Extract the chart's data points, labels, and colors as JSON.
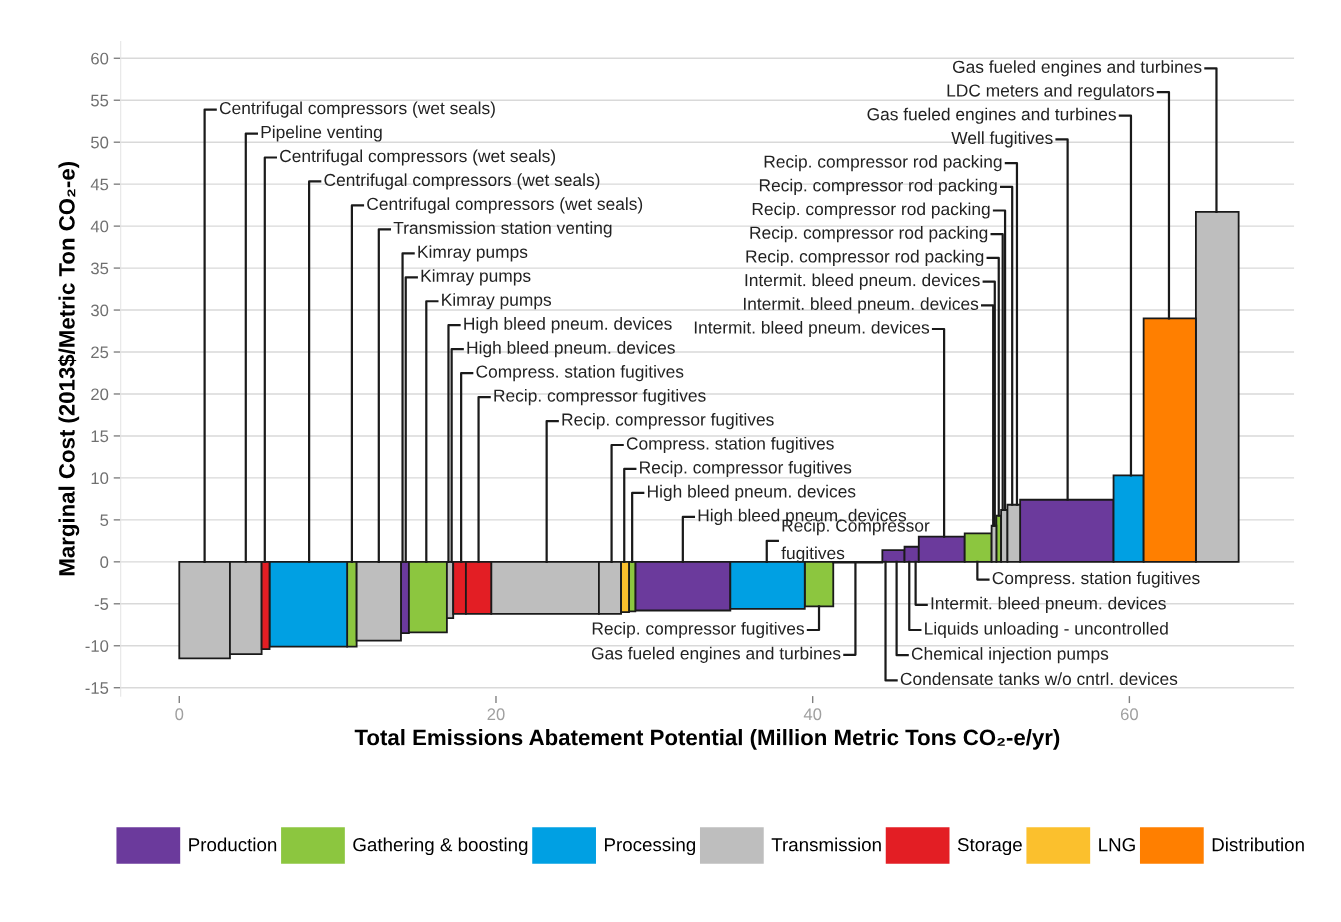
{
  "chart_data": {
    "type": "histogram",
    "xlabel": "Total Emissions Abatement Potential (Million Metric Tons CO₂-e/yr)",
    "ylabel": "Marginal Cost (2013$/Metric Ton CO₂-e)",
    "bins": [
      0,
      3.2,
      5.2,
      5.7,
      10.6,
      11.2,
      14.0,
      14.5,
      16.9,
      17.3,
      18.1,
      19.7,
      26.5,
      27.9,
      28.4,
      28.8,
      34.8,
      39.5,
      41.3,
      44.4,
      45.8,
      46.7,
      49.6,
      51.3,
      51.6,
      51.9,
      52.3,
      53.1,
      59.0,
      60.9,
      64.2,
      66.9
    ],
    "series": [
      {
        "name": "Production",
        "color": "#6b3a9c",
        "values": [
          null,
          null,
          null,
          null,
          null,
          null,
          -8.5,
          null,
          null,
          null,
          null,
          null,
          null,
          null,
          null,
          -5.8,
          null,
          null,
          null,
          1.4,
          1.8,
          3.0,
          null,
          null,
          null,
          null,
          null,
          7.4,
          null,
          null,
          null
        ]
      },
      {
        "name": "Gathering & boosting",
        "color": "#8cc63f",
        "values": [
          null,
          null,
          null,
          null,
          -10.1,
          null,
          null,
          -8.4,
          null,
          null,
          null,
          null,
          null,
          null,
          -5.9,
          null,
          null,
          -5.3,
          null,
          null,
          null,
          null,
          3.4,
          null,
          5.5,
          null,
          null,
          null,
          null,
          null,
          null
        ]
      },
      {
        "name": "Processing",
        "color": "#00a0e3",
        "values": [
          null,
          null,
          null,
          -10.1,
          null,
          null,
          null,
          null,
          null,
          null,
          null,
          null,
          null,
          null,
          null,
          null,
          -5.6,
          null,
          null,
          null,
          null,
          null,
          null,
          null,
          null,
          null,
          null,
          null,
          10.3,
          null,
          null
        ]
      },
      {
        "name": "Transmission",
        "color": "#bebebe",
        "values": [
          -11.5,
          -11.0,
          null,
          null,
          null,
          -9.4,
          null,
          null,
          -6.7,
          null,
          null,
          -6.2,
          -6.2,
          null,
          null,
          null,
          null,
          null,
          -0.1,
          null,
          null,
          null,
          null,
          4.3,
          null,
          6.2,
          6.8,
          null,
          null,
          null,
          41.7
        ]
      },
      {
        "name": "Storage",
        "color": "#e31e24",
        "values": [
          null,
          null,
          -10.4,
          null,
          null,
          null,
          null,
          null,
          null,
          -6.2,
          -6.2,
          null,
          null,
          null,
          null,
          null,
          null,
          null,
          null,
          null,
          null,
          null,
          null,
          null,
          null,
          null,
          null,
          null,
          null,
          null,
          null
        ]
      },
      {
        "name": "LNG",
        "color": "#fbc02d",
        "values": [
          null,
          null,
          null,
          null,
          null,
          null,
          null,
          null,
          null,
          null,
          null,
          null,
          null,
          -6.0,
          null,
          null,
          null,
          null,
          null,
          null,
          null,
          null,
          null,
          null,
          null,
          null,
          null,
          null,
          null,
          null,
          null
        ]
      },
      {
        "name": "Distribution",
        "color": "#ff7f00",
        "values": [
          null,
          null,
          null,
          null,
          null,
          null,
          null,
          null,
          null,
          null,
          null,
          null,
          null,
          null,
          null,
          null,
          null,
          null,
          null,
          null,
          null,
          null,
          null,
          null,
          null,
          null,
          null,
          null,
          null,
          29.0,
          null
        ]
      }
    ],
    "xlim": [
      -3.7,
      70.4
    ],
    "ylim": [
      -16,
      62
    ],
    "xticks": [
      0,
      20,
      40,
      60
    ],
    "yticks": [
      -15,
      -10,
      -5,
      0,
      5,
      10,
      15,
      20,
      25,
      30,
      35,
      40,
      45,
      50,
      55,
      60
    ],
    "grid": "y",
    "legend": "bottom",
    "annotations": [
      {
        "text": "Centrifugal compressors (wet seals)",
        "x": 1.6,
        "y": 0
      },
      {
        "text": "Pipeline venting",
        "x": 4.2,
        "y": 0
      },
      {
        "text": "Centrifugal compressors (wet seals)",
        "x": 5.4,
        "y": 0
      },
      {
        "text": "Centrifugal compressors (wet seals)",
        "x": 8.2,
        "y": 0
      },
      {
        "text": "Centrifugal compressors (wet seals)",
        "x": 10.9,
        "y": 0
      },
      {
        "text": "Transmission station venting",
        "x": 12.6,
        "y": 0
      },
      {
        "text": "Kimray pumps",
        "x": 14.1,
        "y": 0
      },
      {
        "text": "Kimray pumps",
        "x": 14.3,
        "y": 0
      },
      {
        "text": "Kimray pumps",
        "x": 15.6,
        "y": 0
      },
      {
        "text": "High bleed pneum. devices",
        "x": 17.0,
        "y": 0
      },
      {
        "text": "High bleed pneum. devices",
        "x": 17.2,
        "y": 0
      },
      {
        "text": "Compress. station fugitives",
        "x": 17.8,
        "y": 0
      },
      {
        "text": "Recip. compressor fugitives",
        "x": 18.9,
        "y": 0
      },
      {
        "text": "Recip. compressor fugitives",
        "x": 23.2,
        "y": 0
      },
      {
        "text": "Compress. station fugitives",
        "x": 27.3,
        "y": 0
      },
      {
        "text": "Recip. compressor fugitives",
        "x": 28.1,
        "y": 0
      },
      {
        "text": "High bleed pneum. devices",
        "x": 28.6,
        "y": 0
      },
      {
        "text": "High bleed pneum. devices",
        "x": 31.8,
        "y": 0
      },
      {
        "text": "Recip. Compressor\nfugitives",
        "x": 37.1,
        "y": 0
      },
      {
        "text": "Gas fueled engines and turbines",
        "x": 65.5,
        "y": 41.7
      },
      {
        "text": "LDC meters and regulators",
        "x": 62.5,
        "y": 29.0
      },
      {
        "text": "Gas fueled engines and turbines",
        "x": 60.1,
        "y": 10.3
      },
      {
        "text": "Well fugitives",
        "x": 56.1,
        "y": 7.4
      },
      {
        "text": "Recip. compressor rod packing",
        "x": 52.9,
        "y": 6.8
      },
      {
        "text": "Recip. compressor rod packing",
        "x": 52.6,
        "y": 6.8
      },
      {
        "text": "Recip. compressor rod packing",
        "x": 52.15,
        "y": 6.2
      },
      {
        "text": "Recip. compressor rod packing",
        "x": 52.0,
        "y": 6.2
      },
      {
        "text": "Recip. compressor rod packing",
        "x": 51.75,
        "y": 5.5
      },
      {
        "text": "Intermit. bleed pneum. devices",
        "x": 51.5,
        "y": 4.3
      },
      {
        "text": "Intermit. bleed pneum. devices",
        "x": 51.4,
        "y": 4.3
      },
      {
        "text": "Intermit. bleed pneum. devices",
        "x": 48.3,
        "y": 3.0
      },
      {
        "text": "Recip. compressor fugitives",
        "x": 40.4,
        "y": -5.3
      },
      {
        "text": "Gas fueled engines and turbines",
        "x": 42.7,
        "y": -0.1
      },
      {
        "text": "Compress. station fugitives",
        "x": 50.4,
        "y": 0
      },
      {
        "text": "Intermit. bleed pneum. devices",
        "x": 46.5,
        "y": 0
      },
      {
        "text": "Liquids unloading - uncontrolled",
        "x": 46.1,
        "y": 0
      },
      {
        "text": "Chemical injection pumps",
        "x": 45.3,
        "y": 0
      },
      {
        "text": "Condensate tanks w/o cntrl. devices",
        "x": 44.6,
        "y": 0
      }
    ]
  }
}
